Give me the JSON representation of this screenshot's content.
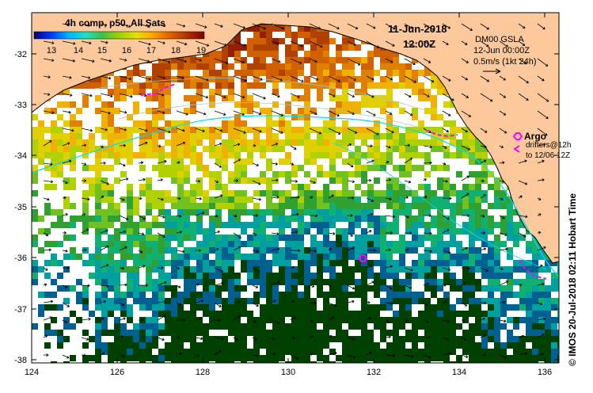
{
  "title": {
    "product": "4h comp, p50, All Sats",
    "date": "11-Jun-2018",
    "time": "12:00Z"
  },
  "colorbar": {
    "ticks": [
      "13",
      "14",
      "15",
      "16",
      "17",
      "18",
      "19"
    ],
    "stops": [
      "#000080",
      "#0038ff",
      "#00b0ff",
      "#20e0c0",
      "#40c040",
      "#a0d000",
      "#e8e000",
      "#ffa000",
      "#e06000",
      "#b03000",
      "#800000"
    ]
  },
  "current_legend": {
    "source": "DM00 GSLA",
    "time": "12-Jun 00:00Z",
    "scale": "0.5m/s (1kt 24h)"
  },
  "argo_legend": {
    "label": "Argo",
    "drifters": "drifters@12h",
    "to": "to 12/06 12Z"
  },
  "credit": "© IMOS 20-Jul-2018 02:11 Hobart Time",
  "axes": {
    "lon_ticks": [
      "124",
      "126",
      "128",
      "130",
      "132",
      "134",
      "136"
    ],
    "lat_ticks": [
      "-32",
      "-33",
      "-34",
      "-35",
      "-36",
      "-37",
      "-38"
    ]
  },
  "colors": {
    "land": "#fdc99c",
    "argo": "#ff00ff",
    "contour": "#00e0f0"
  }
}
